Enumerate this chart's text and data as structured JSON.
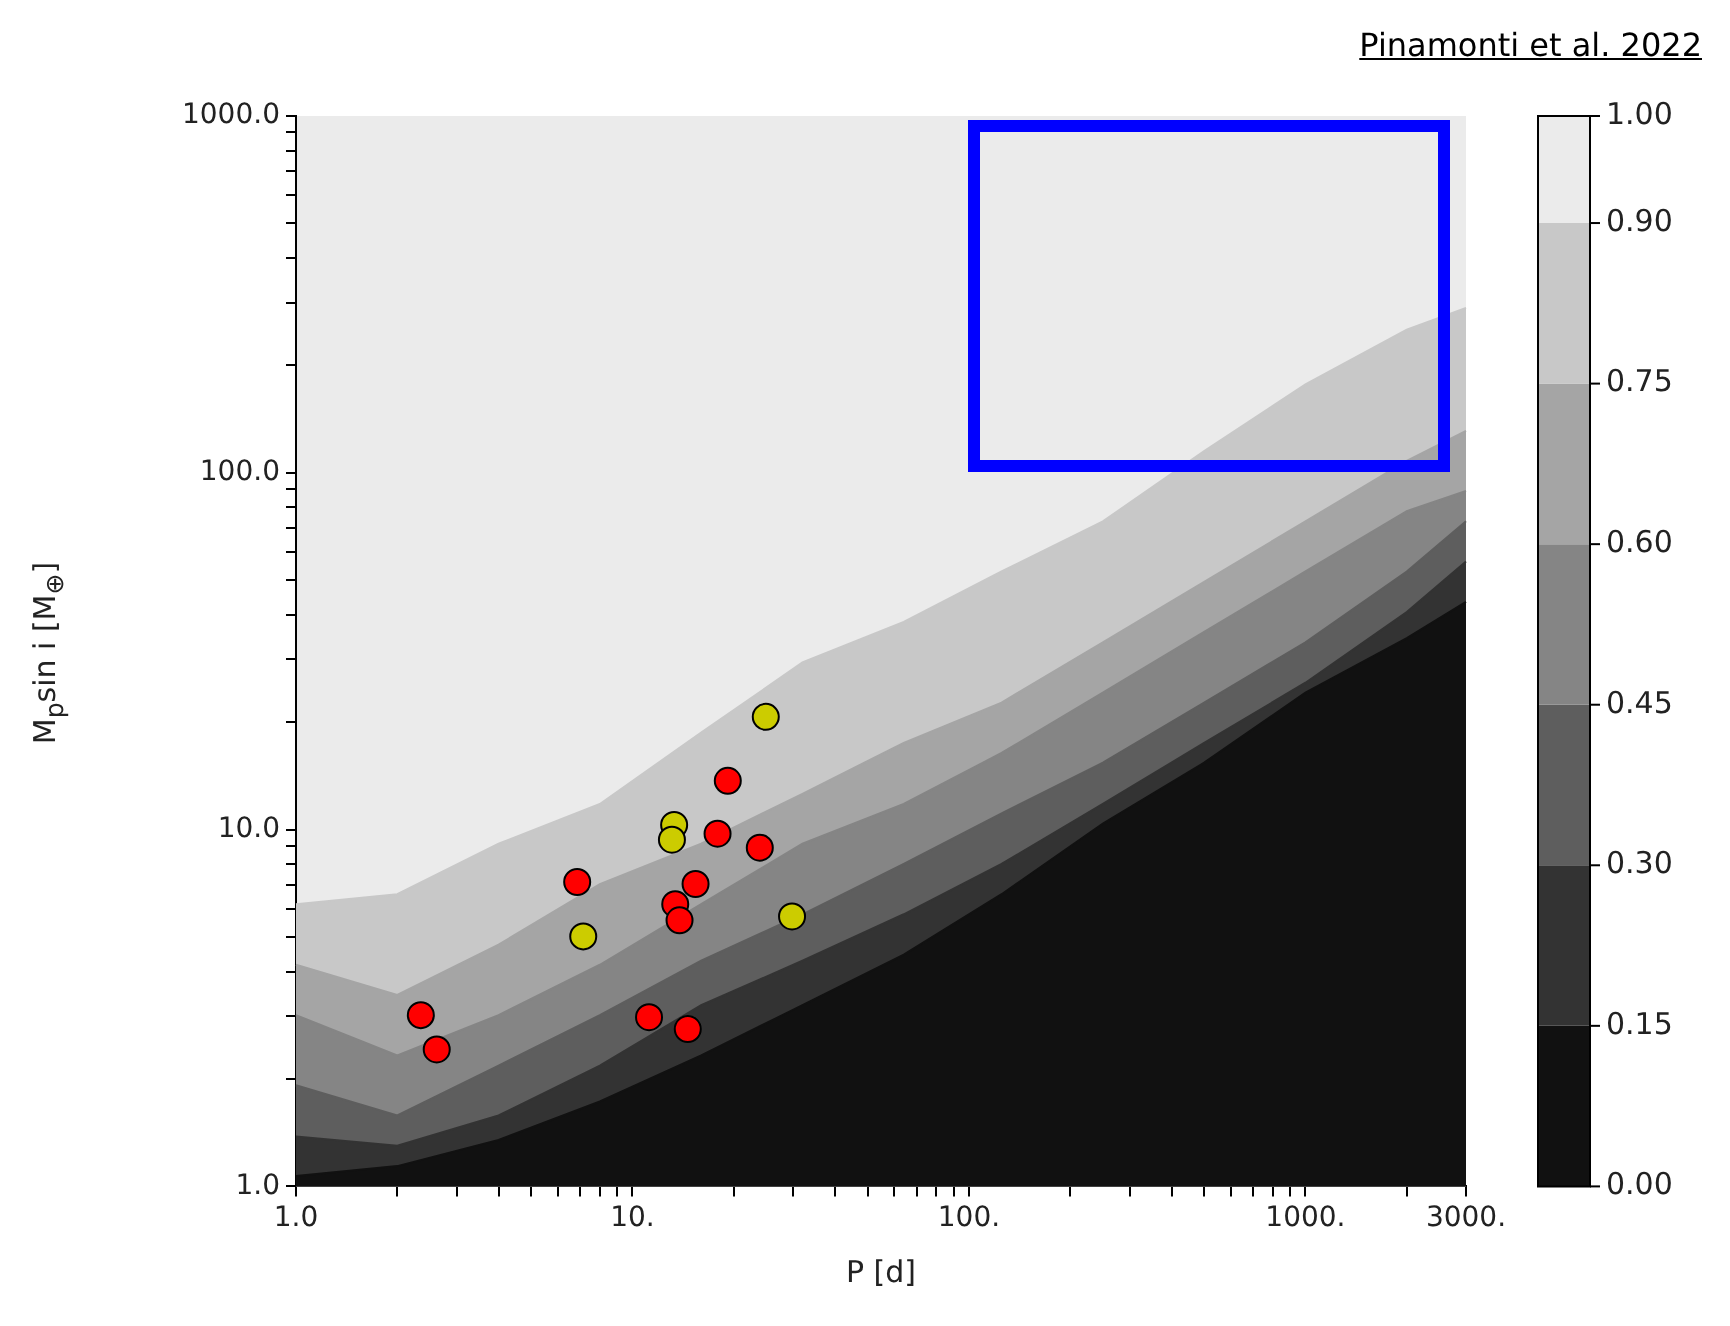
{
  "chart_data": {
    "type": "scatter",
    "xlabel": "P [d]",
    "ylabel": "M$_{p}$sin i [M$_{⊕}$]",
    "annotations": [
      "Pinamonti et al. 2022"
    ],
    "log": "xy",
    "xlim": [
      1,
      3000
    ],
    "ylim": [
      1,
      1000
    ],
    "xticks": [
      {
        "value": 1,
        "label": "1.0"
      },
      {
        "value": 2,
        "label": null
      },
      {
        "value": 3,
        "label": null
      },
      {
        "value": 4,
        "label": null
      },
      {
        "value": 5,
        "label": null
      },
      {
        "value": 6,
        "label": null
      },
      {
        "value": 7,
        "label": null
      },
      {
        "value": 8,
        "label": null
      },
      {
        "value": 9,
        "label": null
      },
      {
        "value": 10,
        "label": "10."
      },
      {
        "value": 20,
        "label": null
      },
      {
        "value": 30,
        "label": null
      },
      {
        "value": 40,
        "label": null
      },
      {
        "value": 50,
        "label": null
      },
      {
        "value": 60,
        "label": null
      },
      {
        "value": 70,
        "label": null
      },
      {
        "value": 80,
        "label": null
      },
      {
        "value": 90,
        "label": null
      },
      {
        "value": 100,
        "label": "100."
      },
      {
        "value": 200,
        "label": null
      },
      {
        "value": 300,
        "label": null
      },
      {
        "value": 400,
        "label": null
      },
      {
        "value": 500,
        "label": null
      },
      {
        "value": 600,
        "label": null
      },
      {
        "value": 700,
        "label": null
      },
      {
        "value": 800,
        "label": null
      },
      {
        "value": 900,
        "label": null
      },
      {
        "value": 1000,
        "label": "1000."
      },
      {
        "value": 2000,
        "label": null
      },
      {
        "value": 3000,
        "label": "3000."
      }
    ],
    "yticks": [
      {
        "value": 1,
        "label": "1.0"
      },
      {
        "value": 2,
        "label": null
      },
      {
        "value": 3,
        "label": null
      },
      {
        "value": 4,
        "label": null
      },
      {
        "value": 5,
        "label": null
      },
      {
        "value": 6,
        "label": null
      },
      {
        "value": 7,
        "label": null
      },
      {
        "value": 8,
        "label": null
      },
      {
        "value": 9,
        "label": null
      },
      {
        "value": 10,
        "label": "10.0"
      },
      {
        "value": 20,
        "label": null
      },
      {
        "value": 30,
        "label": null
      },
      {
        "value": 40,
        "label": null
      },
      {
        "value": 50,
        "label": null
      },
      {
        "value": 60,
        "label": null
      },
      {
        "value": 70,
        "label": null
      },
      {
        "value": 80,
        "label": null
      },
      {
        "value": 90,
        "label": null
      },
      {
        "value": 100,
        "label": "100.0"
      },
      {
        "value": 200,
        "label": null
      },
      {
        "value": 300,
        "label": null
      },
      {
        "value": 400,
        "label": null
      },
      {
        "value": 500,
        "label": null
      },
      {
        "value": 600,
        "label": null
      },
      {
        "value": 700,
        "label": null
      },
      {
        "value": 800,
        "label": null
      },
      {
        "value": 900,
        "label": null
      },
      {
        "value": 1000,
        "label": "1000.0"
      }
    ],
    "clim": [
      0,
      1
    ],
    "cticks": [
      {
        "value": 0,
        "label": "0.00"
      },
      {
        "value": 0.15,
        "label": "0.15"
      },
      {
        "value": 0.3,
        "label": "0.30"
      },
      {
        "value": 0.45,
        "label": "0.45"
      },
      {
        "value": 0.6,
        "label": "0.60"
      },
      {
        "value": 0.75,
        "label": "0.75"
      },
      {
        "value": 0.9,
        "label": "0.90"
      },
      {
        "value": 1,
        "label": "1.00"
      }
    ],
    "series": [
      {
        "marker": "circle",
        "color": "#ff0000",
        "x": [
          2.35,
          2.62,
          6.85,
          19.2,
          17.9,
          23.9,
          15.4,
          13.4,
          13.8,
          11.2,
          14.6
        ],
        "values": [
          3.02,
          2.42,
          7.13,
          13.7,
          9.74,
          8.9,
          7.04,
          6.18,
          5.57,
          2.98,
          2.76
        ]
      },
      {
        "marker": "circle",
        "color": "#cccc00",
        "x": [
          24.9,
          13.3,
          13.1,
          7.14,
          29.8
        ],
        "values": [
          20.7,
          10.3,
          9.37,
          5.02,
          5.71
        ]
      },
      {
        "type": "area",
        "color": "#111111",
        "x": [
          1,
          2,
          4,
          8,
          16,
          32,
          64,
          125,
          250,
          500,
          1000,
          2000,
          3000
        ],
        "values": [
          1.07,
          1.14,
          1.35,
          1.73,
          2.33,
          3.22,
          4.46,
          6.59,
          10.4,
          15.4,
          24.2,
          34.4,
          43.5
        ]
      },
      {
        "type": "area",
        "color": "#333333",
        "x": [
          1,
          2,
          4,
          8,
          16,
          32,
          64,
          125,
          250,
          500,
          1000,
          2000,
          3000
        ],
        "values": [
          1.38,
          1.3,
          1.58,
          2.18,
          3.22,
          4.29,
          5.79,
          8.01,
          11.8,
          17.5,
          25.8,
          40.7,
          56.4
        ]
      },
      {
        "type": "area",
        "color": "#5e5e5e",
        "x": [
          1,
          2,
          4,
          8,
          16,
          32,
          64,
          125,
          250,
          500,
          1000,
          2000,
          3000
        ],
        "values": [
          1.92,
          1.58,
          2.18,
          3.02,
          4.29,
          5.79,
          8.01,
          11.1,
          15.4,
          22.7,
          33.5,
          52.9,
          73.1
        ]
      },
      {
        "type": "area",
        "color": "#858585",
        "x": [
          1,
          2,
          4,
          8,
          16,
          32,
          64,
          125,
          250,
          500,
          1000,
          2000,
          3000
        ],
        "values": [
          3.02,
          2.33,
          3.02,
          4.18,
          6.18,
          9.13,
          11.8,
          16.4,
          24.2,
          35.8,
          52.9,
          78.1,
          88.9
        ]
      },
      {
        "type": "area",
        "color": "#a5a5a5",
        "x": [
          1,
          2,
          4,
          8,
          16,
          32,
          64,
          125,
          250,
          500,
          1000,
          2000,
          3000
        ],
        "values": [
          4.18,
          3.44,
          4.76,
          7.03,
          9.13,
          12.6,
          17.5,
          22.7,
          33.5,
          49.5,
          73.1,
          108,
          131
        ]
      },
      {
        "type": "area",
        "color": "#c8c8c8",
        "x": [
          1,
          2,
          4,
          8,
          16,
          32,
          64,
          125,
          250,
          500,
          1000,
          2000,
          3000
        ],
        "values": [
          6.18,
          6.59,
          9.13,
          11.8,
          18.7,
          29.4,
          38.2,
          52.9,
          73.1,
          115,
          177,
          252,
          290
        ]
      }
    ]
  }
}
